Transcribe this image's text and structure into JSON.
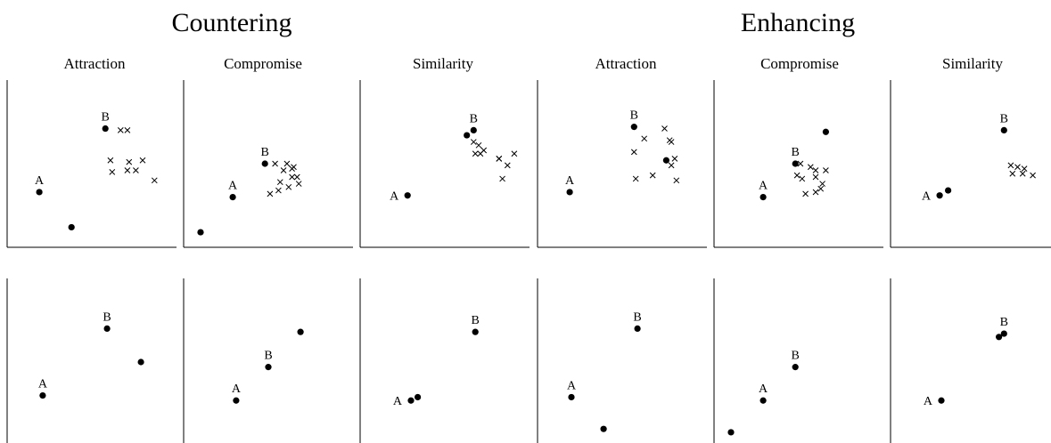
{
  "groups": [
    "Countering",
    "Enhancing"
  ],
  "chart_data": [
    {
      "type": "scatter",
      "group": "Countering",
      "title": "Attraction",
      "row": "top",
      "xlim": [
        0,
        1
      ],
      "ylim": [
        0,
        1
      ],
      "grid": false,
      "points": [
        {
          "x": 0.19,
          "y": 0.33,
          "label": "A"
        },
        {
          "x": 0.58,
          "y": 0.71,
          "label": "B"
        },
        {
          "x": 0.38,
          "y": 0.12,
          "label": ""
        }
      ],
      "crosses": [
        [
          0.67,
          0.7
        ],
        [
          0.71,
          0.7
        ],
        [
          0.61,
          0.52
        ],
        [
          0.72,
          0.51
        ],
        [
          0.8,
          0.52
        ],
        [
          0.62,
          0.45
        ],
        [
          0.71,
          0.46
        ],
        [
          0.76,
          0.46
        ],
        [
          0.87,
          0.4
        ]
      ]
    },
    {
      "type": "scatter",
      "group": "Countering",
      "title": "Compromise",
      "row": "top",
      "xlim": [
        0,
        1
      ],
      "ylim": [
        0,
        1
      ],
      "grid": false,
      "points": [
        {
          "x": 0.29,
          "y": 0.3,
          "label": "A"
        },
        {
          "x": 0.48,
          "y": 0.5,
          "label": "B"
        },
        {
          "x": 0.1,
          "y": 0.09,
          "label": ""
        }
      ],
      "crosses": [
        [
          0.54,
          0.5
        ],
        [
          0.61,
          0.5
        ],
        [
          0.65,
          0.48
        ],
        [
          0.59,
          0.46
        ],
        [
          0.64,
          0.47
        ],
        [
          0.64,
          0.42
        ],
        [
          0.57,
          0.39
        ],
        [
          0.67,
          0.42
        ],
        [
          0.62,
          0.36
        ],
        [
          0.56,
          0.34
        ],
        [
          0.68,
          0.38
        ],
        [
          0.51,
          0.32
        ]
      ]
    },
    {
      "type": "scatter",
      "group": "Countering",
      "title": "Similarity",
      "row": "top",
      "xlim": [
        0,
        1
      ],
      "ylim": [
        0,
        1
      ],
      "grid": false,
      "points": [
        {
          "x": 0.28,
          "y": 0.31,
          "label": "A"
        },
        {
          "x": 0.67,
          "y": 0.7,
          "label": "B"
        },
        {
          "x": 0.63,
          "y": 0.67,
          "label": ""
        }
      ],
      "crosses": [
        [
          0.67,
          0.63
        ],
        [
          0.7,
          0.61
        ],
        [
          0.73,
          0.58
        ],
        [
          0.68,
          0.56
        ],
        [
          0.71,
          0.56
        ],
        [
          0.82,
          0.53
        ],
        [
          0.82,
          0.53
        ],
        [
          0.87,
          0.49
        ],
        [
          0.91,
          0.56
        ],
        [
          0.84,
          0.41
        ]
      ]
    },
    {
      "type": "scatter",
      "group": "Enhancing",
      "title": "Attraction",
      "row": "top",
      "xlim": [
        0,
        1
      ],
      "ylim": [
        0,
        1
      ],
      "grid": false,
      "points": [
        {
          "x": 0.19,
          "y": 0.33,
          "label": "A"
        },
        {
          "x": 0.57,
          "y": 0.72,
          "label": "B"
        },
        {
          "x": 0.76,
          "y": 0.52,
          "label": ""
        }
      ],
      "crosses": [
        [
          0.75,
          0.71
        ],
        [
          0.63,
          0.65
        ],
        [
          0.78,
          0.64
        ],
        [
          0.79,
          0.63
        ],
        [
          0.57,
          0.57
        ],
        [
          0.81,
          0.53
        ],
        [
          0.79,
          0.49
        ],
        [
          0.58,
          0.41
        ],
        [
          0.68,
          0.43
        ],
        [
          0.82,
          0.4
        ]
      ]
    },
    {
      "type": "scatter",
      "group": "Enhancing",
      "title": "Compromise",
      "row": "top",
      "xlim": [
        0,
        1
      ],
      "ylim": [
        0,
        1
      ],
      "grid": false,
      "points": [
        {
          "x": 0.29,
          "y": 0.3,
          "label": "A"
        },
        {
          "x": 0.48,
          "y": 0.5,
          "label": "B"
        },
        {
          "x": 0.66,
          "y": 0.69,
          "label": ""
        }
      ],
      "crosses": [
        [
          0.51,
          0.5
        ],
        [
          0.57,
          0.48
        ],
        [
          0.6,
          0.46
        ],
        [
          0.66,
          0.46
        ],
        [
          0.49,
          0.43
        ],
        [
          0.52,
          0.41
        ],
        [
          0.6,
          0.42
        ],
        [
          0.64,
          0.38
        ],
        [
          0.54,
          0.32
        ],
        [
          0.6,
          0.33
        ],
        [
          0.63,
          0.35
        ]
      ]
    },
    {
      "type": "scatter",
      "group": "Enhancing",
      "title": "Similarity",
      "row": "top",
      "xlim": [
        0,
        1
      ],
      "ylim": [
        0,
        1
      ],
      "grid": false,
      "points": [
        {
          "x": 0.29,
          "y": 0.31,
          "label": "A"
        },
        {
          "x": 0.34,
          "y": 0.34,
          "label": ""
        },
        {
          "x": 0.67,
          "y": 0.7,
          "label": "B"
        }
      ],
      "crosses": [
        [
          0.71,
          0.49
        ],
        [
          0.75,
          0.48
        ],
        [
          0.79,
          0.47
        ],
        [
          0.72,
          0.44
        ],
        [
          0.78,
          0.44
        ],
        [
          0.84,
          0.43
        ],
        [
          0.98,
          0.57
        ],
        [
          0.98,
          0.52
        ]
      ]
    },
    {
      "type": "scatter",
      "group": "Countering",
      "title": "Attraction",
      "row": "bottom",
      "xlim": [
        0,
        1
      ],
      "ylim": [
        0,
        1
      ],
      "grid": false,
      "points": [
        {
          "x": 0.21,
          "y": 0.3,
          "label": "A"
        },
        {
          "x": 0.59,
          "y": 0.7,
          "label": "B"
        },
        {
          "x": 0.79,
          "y": 0.5,
          "label": ""
        }
      ]
    },
    {
      "type": "scatter",
      "group": "Countering",
      "title": "Compromise",
      "row": "bottom",
      "xlim": [
        0,
        1
      ],
      "ylim": [
        0,
        1
      ],
      "grid": false,
      "points": [
        {
          "x": 0.31,
          "y": 0.27,
          "label": "A"
        },
        {
          "x": 0.5,
          "y": 0.47,
          "label": "B"
        },
        {
          "x": 0.69,
          "y": 0.68,
          "label": ""
        }
      ]
    },
    {
      "type": "scatter",
      "group": "Countering",
      "title": "Similarity",
      "row": "bottom",
      "xlim": [
        0,
        1
      ],
      "ylim": [
        0,
        1
      ],
      "grid": false,
      "points": [
        {
          "x": 0.3,
          "y": 0.27,
          "label": "A"
        },
        {
          "x": 0.34,
          "y": 0.29,
          "label": ""
        },
        {
          "x": 0.68,
          "y": 0.68,
          "label": "B"
        }
      ]
    },
    {
      "type": "scatter",
      "group": "Enhancing",
      "title": "Attraction",
      "row": "bottom",
      "xlim": [
        0,
        1
      ],
      "ylim": [
        0,
        1
      ],
      "grid": false,
      "points": [
        {
          "x": 0.2,
          "y": 0.29,
          "label": "A"
        },
        {
          "x": 0.59,
          "y": 0.7,
          "label": "B"
        },
        {
          "x": 0.39,
          "y": 0.1,
          "label": ""
        }
      ]
    },
    {
      "type": "scatter",
      "group": "Enhancing",
      "title": "Compromise",
      "row": "bottom",
      "xlim": [
        0,
        1
      ],
      "ylim": [
        0,
        1
      ],
      "grid": false,
      "points": [
        {
          "x": 0.29,
          "y": 0.27,
          "label": "A"
        },
        {
          "x": 0.48,
          "y": 0.47,
          "label": "B"
        },
        {
          "x": 0.1,
          "y": 0.08,
          "label": ""
        }
      ]
    },
    {
      "type": "scatter",
      "group": "Enhancing",
      "title": "Similarity",
      "row": "bottom",
      "xlim": [
        0,
        1
      ],
      "ylim": [
        0,
        1
      ],
      "grid": false,
      "points": [
        {
          "x": 0.3,
          "y": 0.27,
          "label": "A"
        },
        {
          "x": 0.64,
          "y": 0.65,
          "label": ""
        },
        {
          "x": 0.67,
          "y": 0.67,
          "label": "B"
        }
      ]
    }
  ]
}
